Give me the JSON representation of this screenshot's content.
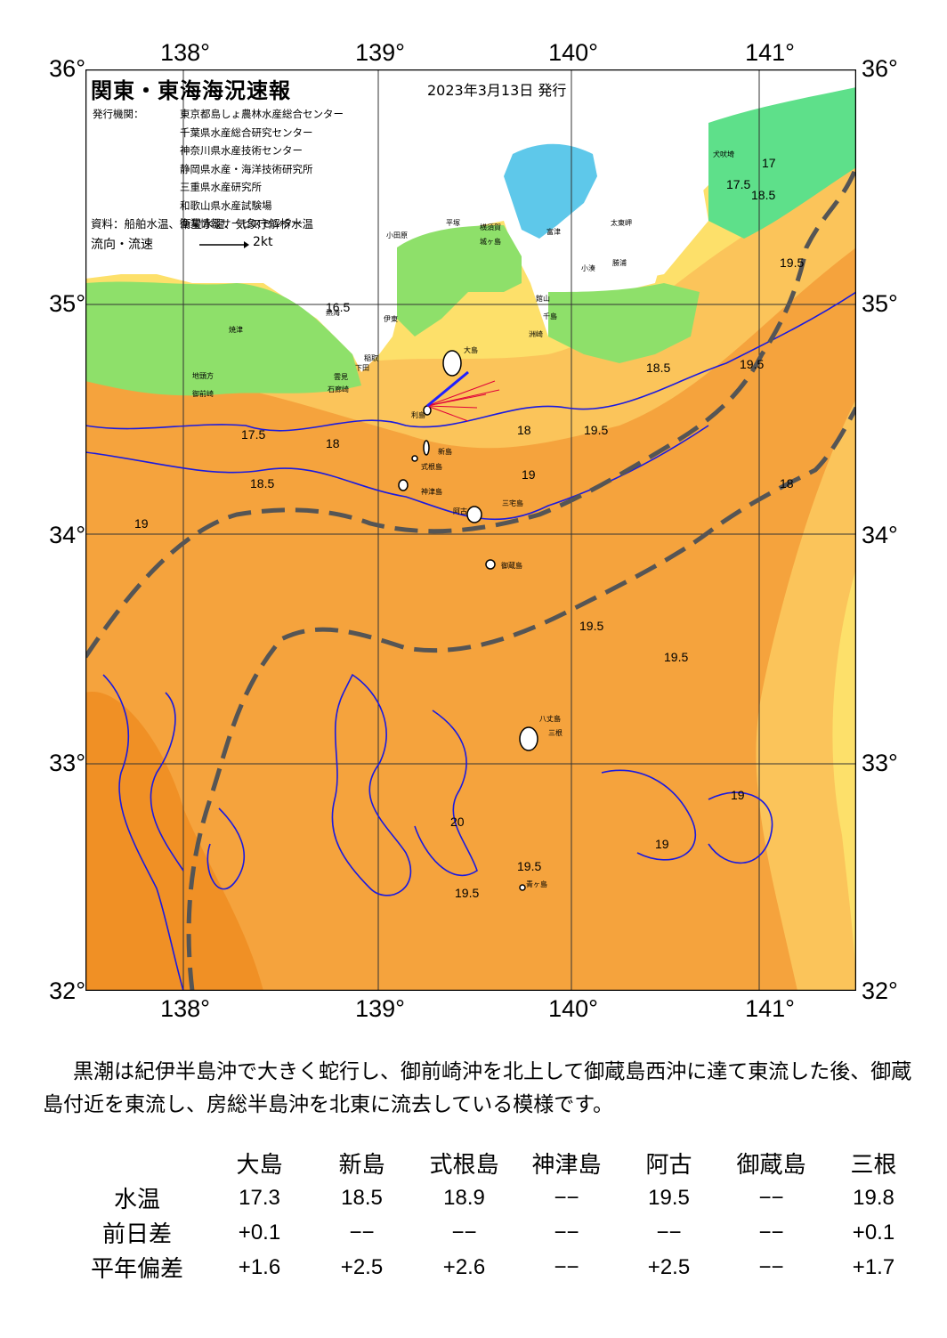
{
  "map": {
    "title": "関東・東海海況速報",
    "date": "2023年3月13日 発行",
    "issuer_label": "発行機関：",
    "issuers": [
      "東京都島しょ農林水産総合センター",
      "千葉県水産総合研究センター",
      "神奈川県水産技術センター",
      "静岡県水産・海洋技術研究所",
      "三重県水産研究所",
      "和歌山県水産試験場",
      "漁業情報サービスセンター"
    ],
    "sources": "資料：船舶水温、衛星水温、気象庁解析水温",
    "flow_label": "流向・流速",
    "flow_scale": "2kt",
    "lon_ticks": [
      "138°",
      "139°",
      "140°",
      "141°"
    ],
    "lat_ticks": [
      "36°",
      "35°",
      "34°",
      "33°",
      "32°"
    ],
    "contour_labels": [
      "17.5",
      "18",
      "18.5",
      "19",
      "19.5",
      "20",
      "16.5",
      "17"
    ],
    "place_labels": [
      "犬吠埼",
      "太東岬",
      "勝浦",
      "館山",
      "千島",
      "洲崎",
      "小湊",
      "富津",
      "横須賀",
      "城ヶ島",
      "平塚",
      "小田原",
      "熱海",
      "伊東",
      "稲取",
      "下田",
      "石廊崎",
      "雲見",
      "御前崎",
      "焼津",
      "地頭方",
      "大島",
      "利島",
      "新島",
      "式根島",
      "神津島",
      "三宅島",
      "阿古",
      "御蔵島",
      "八丈島",
      "三根",
      "青ヶ島"
    ],
    "colors": {
      "warm": "#f5a33d",
      "warmest": "#f09025",
      "mid": "#fbc45a",
      "cool": "#fde06a",
      "bay": "#5ec8ea",
      "green": "#8ee06a",
      "contour": "#1a1ae0",
      "kuroshio": "#555555"
    }
  },
  "description": "黒潮は紀伊半島沖で大きく蛇行し、御前崎沖を北上して御蔵島西沖に達て東流した後、御蔵島付近を東流し、房総半島沖を北東に流去している模様です。",
  "table": {
    "columns": [
      "大島",
      "新島",
      "式根島",
      "神津島",
      "阿古",
      "御蔵島",
      "三根"
    ],
    "rows": [
      {
        "label": "水温",
        "values": [
          "17.3",
          "18.5",
          "18.9",
          "−−",
          "19.5",
          "−−",
          "19.8"
        ]
      },
      {
        "label": "前日差",
        "values": [
          "+0.1",
          "−−",
          "−−",
          "−−",
          "−−",
          "−−",
          "+0.1"
        ]
      },
      {
        "label": "平年偏差",
        "values": [
          "+1.6",
          "+2.5",
          "+2.6",
          "−−",
          "+2.5",
          "−−",
          "+1.7"
        ]
      }
    ]
  }
}
